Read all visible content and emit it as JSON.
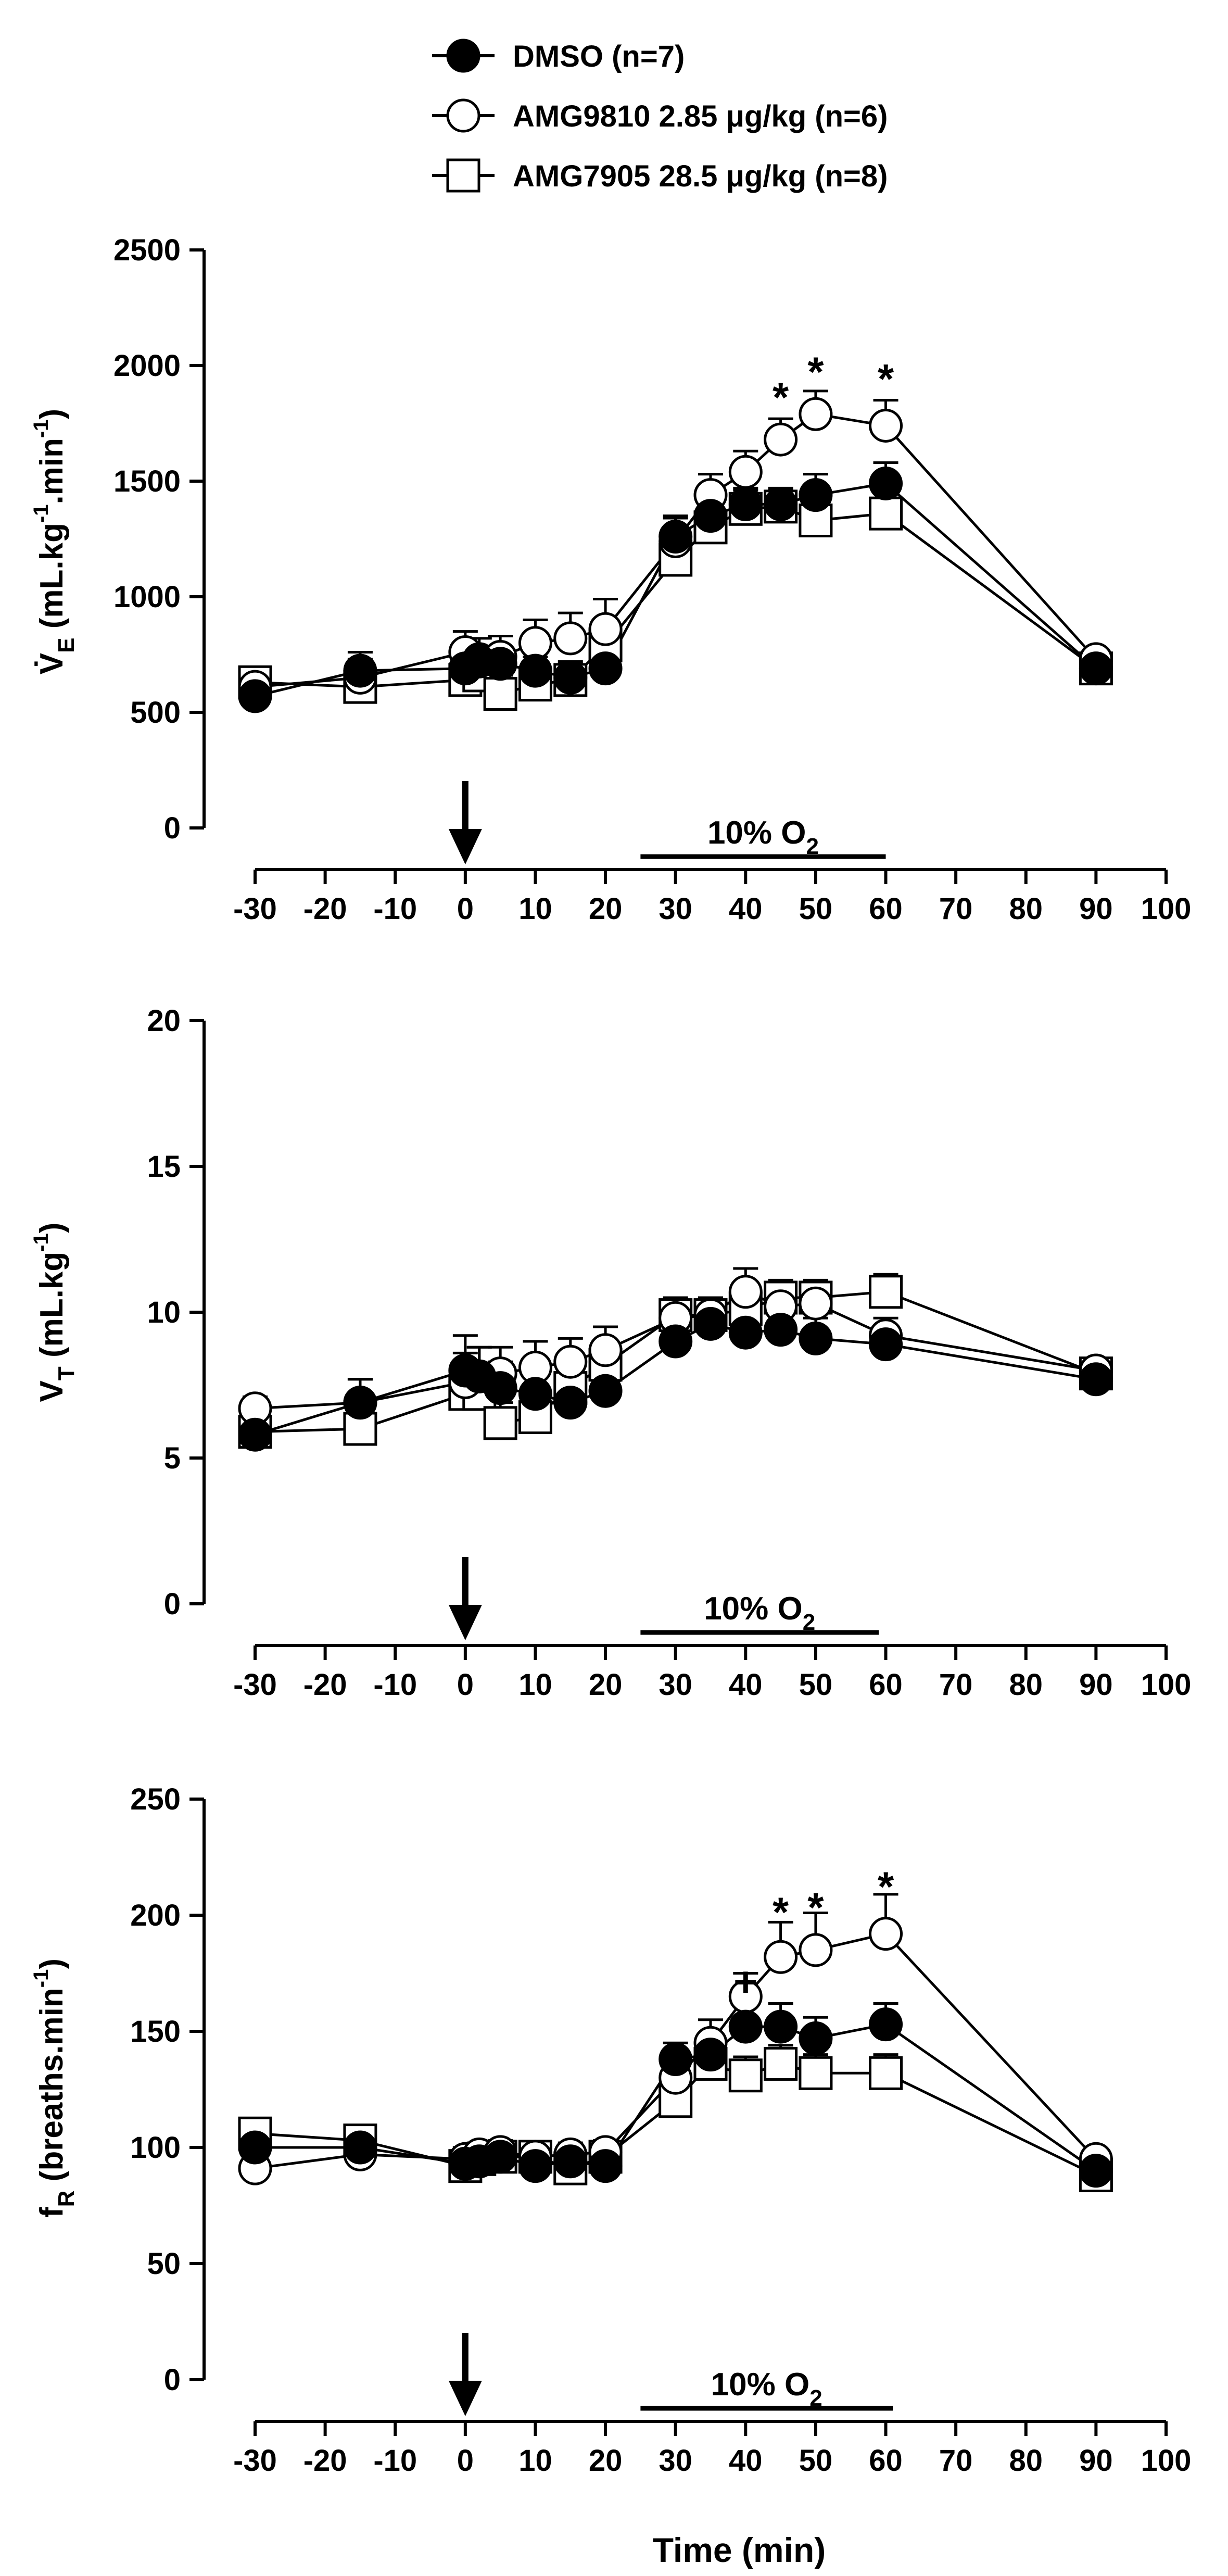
{
  "legend": [
    {
      "series": "DMSO",
      "label": "DMSO (n=7)"
    },
    {
      "series": "AMG9810",
      "label": "AMG9810 2.85 μg/kg (n=6)"
    },
    {
      "series": "AMG7905",
      "label": "AMG7905 28.5 μg/kg (n=8)"
    }
  ],
  "colors": {
    "ink": "#000000",
    "background": "#ffffff"
  },
  "xaxis": {
    "range": [
      -30,
      100
    ],
    "ticks": [
      -30,
      -20,
      -10,
      0,
      10,
      20,
      30,
      40,
      50,
      60,
      70,
      80,
      90,
      100
    ],
    "tick_labels": [
      "-30",
      "-20",
      "-10",
      "0",
      "10",
      "20",
      "30",
      "40",
      "50",
      "60",
      "70",
      "80",
      "90",
      "100"
    ],
    "label": "Time (min)"
  },
  "chart_data": [
    {
      "type": "line",
      "ylabel": {
        "main": "V̇",
        "sub": "E",
        "rest1": " (mL.kg",
        "sup1": "-1",
        "rest2": ".min",
        "sup2": "-1",
        "rest3": ")"
      },
      "ylim": [
        0,
        2500
      ],
      "yticks": [
        0,
        500,
        1000,
        1500,
        2000,
        2500
      ],
      "ytick_labels": [
        "0",
        "500",
        "1000",
        "1500",
        "2000",
        "2500"
      ],
      "injection_time": 0,
      "bar": {
        "start": 25,
        "end": 60,
        "label_main": "10% O",
        "label_sub": "2"
      },
      "annotations": [
        {
          "text": "*",
          "x": 45,
          "y": 1880
        },
        {
          "text": "*",
          "x": 50,
          "y": 1990
        },
        {
          "text": "*",
          "x": 60,
          "y": 1960
        }
      ],
      "series": [
        {
          "name": "DMSO",
          "marker": "filled-circle",
          "x": [
            -30,
            -15,
            0,
            2,
            5,
            10,
            15,
            20,
            30,
            35,
            40,
            45,
            50,
            60,
            90
          ],
          "y": [
            570,
            680,
            690,
            720,
            710,
            680,
            650,
            690,
            1260,
            1350,
            1400,
            1400,
            1440,
            1490,
            690
          ],
          "err": [
            40,
            80,
            60,
            60,
            60,
            60,
            60,
            60,
            80,
            70,
            60,
            60,
            90,
            90,
            40
          ]
        },
        {
          "name": "AMG9810",
          "marker": "open-circle",
          "x": [
            -30,
            -15,
            0,
            2,
            5,
            10,
            15,
            20,
            30,
            35,
            40,
            45,
            50,
            60,
            90
          ],
          "y": [
            610,
            650,
            760,
            730,
            740,
            800,
            820,
            860,
            1240,
            1440,
            1540,
            1680,
            1790,
            1740,
            730
          ],
          "err": [
            40,
            80,
            90,
            90,
            90,
            100,
            110,
            130,
            110,
            90,
            90,
            90,
            100,
            110,
            40
          ]
        },
        {
          "name": "AMG7905",
          "marker": "open-square",
          "x": [
            -30,
            -15,
            0,
            2,
            5,
            10,
            15,
            20,
            30,
            35,
            40,
            45,
            50,
            60,
            90
          ],
          "y": [
            630,
            610,
            640,
            660,
            580,
            620,
            640,
            790,
            1160,
            1300,
            1380,
            1390,
            1330,
            1360,
            690
          ],
          "err": [
            40,
            70,
            70,
            80,
            80,
            80,
            80,
            90,
            90,
            90,
            90,
            80,
            90,
            100,
            40
          ]
        }
      ]
    },
    {
      "type": "line",
      "ylabel": {
        "main": "V",
        "sub": "T",
        "rest1": " (mL.kg",
        "sup1": "-1",
        "rest2": ")"
      },
      "ylim": [
        0,
        20
      ],
      "yticks": [
        0,
        5,
        10,
        15,
        20
      ],
      "ytick_labels": [
        "0",
        "5",
        "10",
        "15",
        "20"
      ],
      "injection_time": 0,
      "bar": {
        "start": 25,
        "end": 59,
        "label_main": "10% O",
        "label_sub": "2"
      },
      "annotations": [],
      "series": [
        {
          "name": "DMSO",
          "marker": "filled-circle",
          "x": [
            -30,
            -15,
            0,
            2,
            5,
            10,
            15,
            20,
            30,
            35,
            40,
            45,
            50,
            60,
            90
          ],
          "y": [
            5.8,
            6.9,
            8.0,
            7.8,
            7.4,
            7.2,
            6.9,
            7.3,
            9.0,
            9.6,
            9.3,
            9.4,
            9.1,
            8.9,
            7.7
          ],
          "err": [
            0.4,
            0.8,
            1.2,
            1.0,
            0.9,
            0.8,
            0.7,
            0.6,
            0.6,
            0.6,
            0.6,
            0.6,
            0.7,
            0.6,
            0.5
          ]
        },
        {
          "name": "AMG9810",
          "marker": "open-circle",
          "x": [
            -30,
            -15,
            0,
            2,
            5,
            10,
            15,
            20,
            30,
            35,
            40,
            45,
            50,
            60,
            90
          ],
          "y": [
            6.7,
            6.9,
            7.6,
            7.8,
            7.9,
            8.1,
            8.3,
            8.7,
            9.8,
            9.9,
            10.7,
            10.2,
            10.3,
            9.2,
            8.0
          ],
          "err": [
            0.4,
            0.8,
            1.0,
            1.0,
            0.9,
            0.9,
            0.8,
            0.8,
            0.6,
            0.6,
            0.8,
            0.7,
            0.7,
            0.6,
            0.4
          ]
        },
        {
          "name": "AMG7905",
          "marker": "open-square",
          "x": [
            -30,
            -15,
            0,
            2,
            5,
            10,
            15,
            20,
            30,
            35,
            40,
            45,
            50,
            60,
            90
          ],
          "y": [
            5.9,
            6.0,
            7.2,
            7.2,
            6.2,
            6.4,
            7.4,
            8.2,
            9.9,
            9.9,
            10.1,
            10.5,
            10.5,
            10.7,
            7.9
          ],
          "err": [
            0.4,
            0.7,
            0.9,
            0.9,
            0.7,
            0.7,
            0.8,
            0.8,
            0.6,
            0.6,
            0.7,
            0.6,
            0.6,
            0.6,
            0.4
          ]
        }
      ]
    },
    {
      "type": "line",
      "ylabel": {
        "main": "f",
        "sub": "R",
        "rest1": " (breaths.min",
        "sup1": "-1",
        "rest2": ")"
      },
      "ylim": [
        0,
        250
      ],
      "yticks": [
        0,
        50,
        100,
        150,
        200,
        250
      ],
      "ytick_labels": [
        "0",
        "50",
        "100",
        "150",
        "200",
        "250"
      ],
      "injection_time": 0,
      "bar": {
        "start": 25,
        "end": 61,
        "label_main": "10% O",
        "label_sub": "2"
      },
      "annotations": [
        {
          "text": "+",
          "x": 40,
          "y": 173
        },
        {
          "text": "*",
          "x": 45,
          "y": 203
        },
        {
          "text": "*",
          "x": 50,
          "y": 205
        },
        {
          "text": "*",
          "x": 60,
          "y": 214
        }
      ],
      "series": [
        {
          "name": "DMSO",
          "marker": "filled-circle",
          "x": [
            -30,
            -15,
            0,
            2,
            5,
            10,
            15,
            20,
            30,
            35,
            40,
            45,
            50,
            60,
            90
          ],
          "y": [
            100,
            100,
            93,
            94,
            96,
            92,
            94,
            92,
            138,
            140,
            152,
            152,
            147,
            153,
            90
          ],
          "err": [
            5,
            5,
            5,
            5,
            5,
            5,
            5,
            5,
            7,
            7,
            10,
            10,
            9,
            9,
            4
          ]
        },
        {
          "name": "AMG9810",
          "marker": "open-circle",
          "x": [
            -30,
            -15,
            0,
            2,
            5,
            10,
            15,
            20,
            30,
            35,
            40,
            45,
            50,
            60,
            90
          ],
          "y": [
            91,
            97,
            95,
            97,
            98,
            96,
            97,
            98,
            130,
            145,
            165,
            182,
            185,
            192,
            95
          ],
          "err": [
            4,
            5,
            5,
            5,
            5,
            5,
            5,
            5,
            10,
            10,
            10,
            15,
            16,
            17,
            4
          ]
        },
        {
          "name": "AMG7905",
          "marker": "open-square",
          "x": [
            -30,
            -15,
            0,
            2,
            5,
            10,
            15,
            20,
            30,
            35,
            40,
            45,
            50,
            60,
            90
          ],
          "y": [
            106,
            103,
            92,
            95,
            96,
            96,
            91,
            96,
            120,
            136,
            131,
            136,
            132,
            132,
            88
          ],
          "err": [
            5,
            5,
            5,
            5,
            5,
            5,
            5,
            5,
            8,
            8,
            8,
            8,
            8,
            8,
            4
          ]
        }
      ]
    }
  ]
}
